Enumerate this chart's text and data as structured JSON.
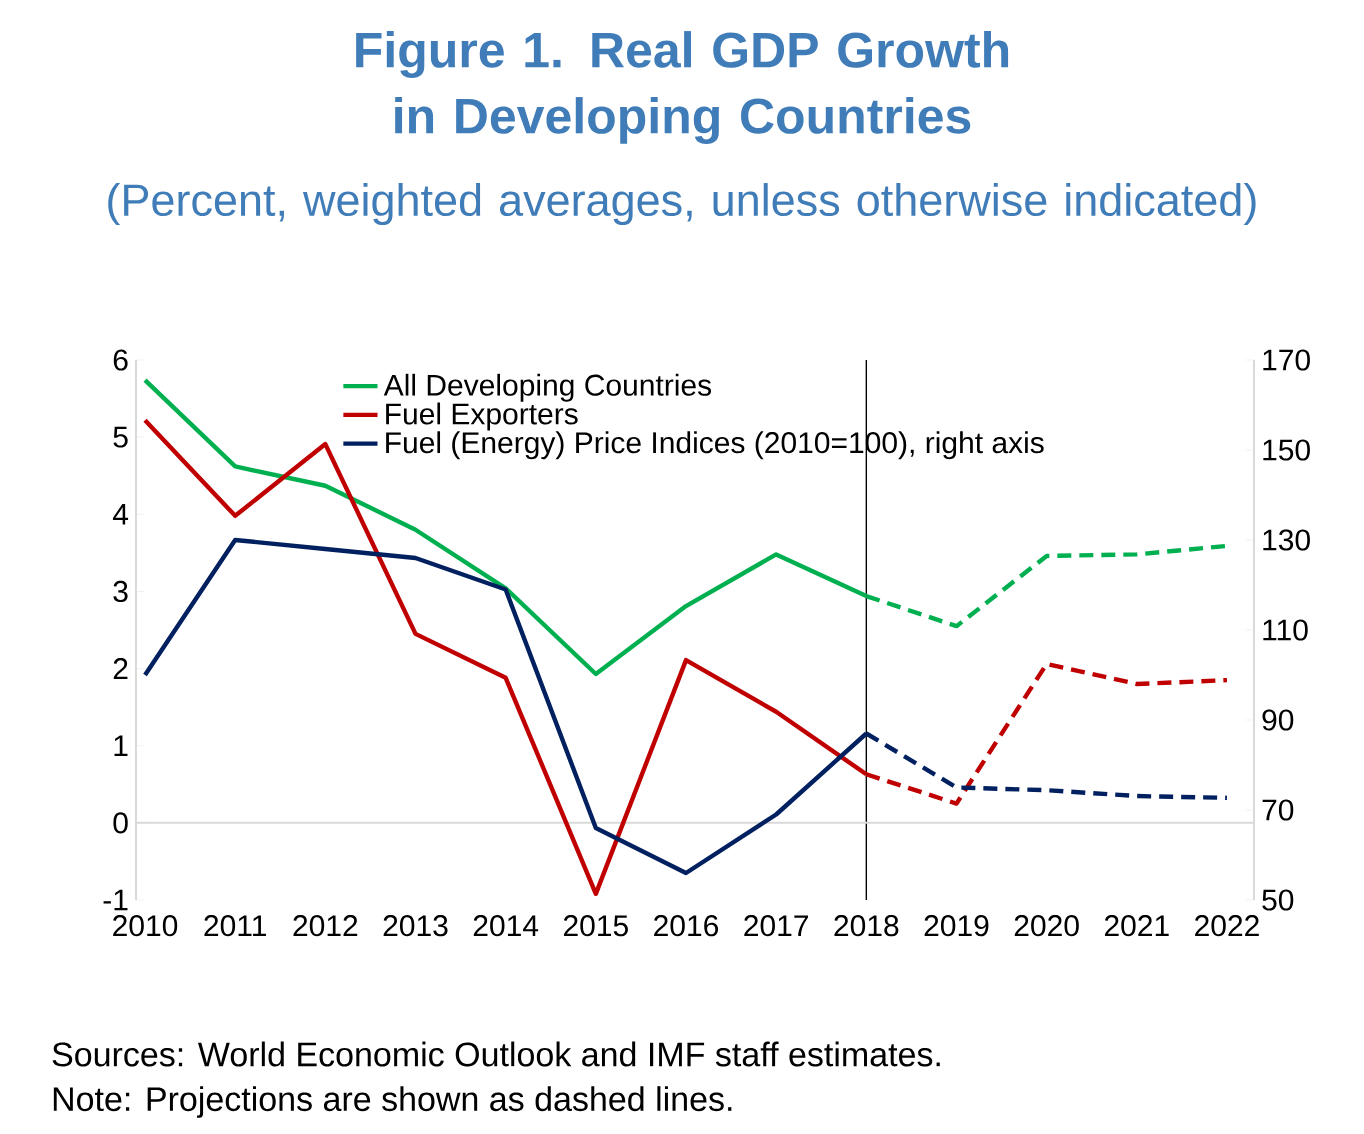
{
  "chart_data": {
    "type": "line",
    "title": "Figure 1. Real GDP Growth in Developing Countries",
    "subtitle": "(Percent, weighted averages, unless otherwise indicated)",
    "xlim": [
      2009.9,
      2022.3
    ],
    "xticks": [
      2010,
      2011,
      2012,
      2013,
      2014,
      2015,
      2016,
      2017,
      2018,
      2019,
      2020,
      2021,
      2022
    ],
    "ylim": [
      -1,
      6
    ],
    "yticks": [
      -1,
      0,
      1,
      2,
      3,
      4,
      5,
      6
    ],
    "y2lim": [
      50,
      170
    ],
    "y2ticks": [
      50,
      70,
      90,
      110,
      130,
      150,
      170
    ],
    "series": [
      {
        "name": "All Developing Countries",
        "color": "#00b050",
        "line_style": "solid",
        "x": [
          2010,
          2011,
          2012,
          2013,
          2014,
          2015,
          2016,
          2017,
          2018
        ],
        "values": [
          5.74,
          4.62,
          4.37,
          3.8,
          3.04,
          1.93,
          2.81,
          3.48,
          2.94
        ]
      },
      {
        "name": "Fuel Exporters",
        "color": "#c00000",
        "line_style": "solid",
        "x": [
          2010,
          2011,
          2012,
          2013,
          2014,
          2015,
          2016,
          2017,
          2018
        ],
        "values": [
          5.22,
          3.98,
          4.91,
          2.45,
          1.88,
          -0.92,
          2.11,
          1.44,
          0.63
        ]
      },
      {
        "name": "Fuel (Energy) Price Indices (2010=100), right axis",
        "color": "#002060",
        "line_style": "solid",
        "axis": "y2",
        "x": [
          2010,
          2011,
          2012,
          2013,
          2014,
          2015,
          2016,
          2017,
          2018
        ],
        "values": [
          100,
          130,
          128,
          126,
          119,
          66,
          56,
          69,
          87
        ]
      },
      {
        "color": "#00b050",
        "line_style": "dashed",
        "x": [
          2018,
          2019,
          2020,
          2021,
          2022
        ],
        "values": [
          2.94,
          2.55,
          3.46,
          3.48,
          3.59
        ]
      },
      {
        "color": "#c00000",
        "line_style": "dashed",
        "x": [
          2018,
          2019,
          2020,
          2021,
          2022
        ],
        "values": [
          0.63,
          0.25,
          2.06,
          1.8,
          1.85
        ]
      },
      {
        "color": "#002060",
        "line_style": "dashed",
        "axis": "y2",
        "x": [
          2018,
          2019,
          2020,
          2021,
          2022
        ],
        "values": [
          87,
          75,
          74.4,
          73.1,
          72.7
        ]
      }
    ],
    "ref_lines": [
      {
        "axis": "x",
        "value": 2018,
        "color": "#000000"
      },
      {
        "axis": "y",
        "value": 0,
        "color": "#d9d9d9"
      }
    ],
    "legend": "top",
    "marker": "none",
    "annotations": [
      "Sources: World Economic Outlook and IMF staff estimates.",
      "Note: Projections are shown as dashed lines."
    ]
  }
}
